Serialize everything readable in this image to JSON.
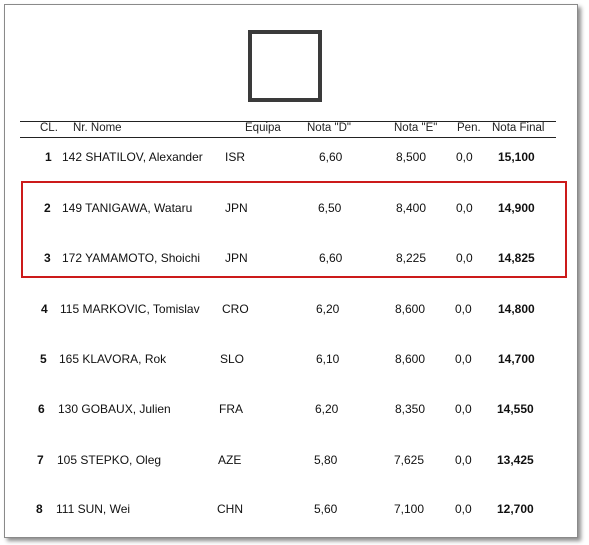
{
  "headers": {
    "cl": "CL.",
    "nr_nome": "Nr. Nome",
    "equipa": "Equipa",
    "nota_d": "Nota \"D\"",
    "nota_e": "Nota \"E\"",
    "pen": "Pen.",
    "nota_final": "Nota Final"
  },
  "rows": [
    {
      "cl": "1",
      "nr_nome": "142 SHATILOV, Alexander",
      "equipa": "ISR",
      "nota_d": "6,60",
      "nota_e": "8,500",
      "pen": "0,0",
      "nota_final": "15,100"
    },
    {
      "cl": "2",
      "nr_nome": "149 TANIGAWA, Wataru",
      "equipa": "JPN",
      "nota_d": "6,50",
      "nota_e": "8,400",
      "pen": "0,0",
      "nota_final": "14,900"
    },
    {
      "cl": "3",
      "nr_nome": "172 YAMAMOTO, Shoichi",
      "equipa": "JPN",
      "nota_d": "6,60",
      "nota_e": "8,225",
      "pen": "0,0",
      "nota_final": "14,825"
    },
    {
      "cl": "4",
      "nr_nome": "115 MARKOVIC, Tomislav",
      "equipa": "CRO",
      "nota_d": "6,20",
      "nota_e": "8,600",
      "pen": "0,0",
      "nota_final": "14,800"
    },
    {
      "cl": "5",
      "nr_nome": "165 KLAVORA, Rok",
      "equipa": "SLO",
      "nota_d": "6,10",
      "nota_e": "8,600",
      "pen": "0,0",
      "nota_final": "14,700"
    },
    {
      "cl": "6",
      "nr_nome": "130 GOBAUX, Julien",
      "equipa": "FRA",
      "nota_d": "6,20",
      "nota_e": "8,350",
      "pen": "0,0",
      "nota_final": "14,550"
    },
    {
      "cl": "7",
      "nr_nome": "105 STEPKO, Oleg",
      "equipa": "AZE",
      "nota_d": "5,80",
      "nota_e": "7,625",
      "pen": "0,0",
      "nota_final": "13,425"
    },
    {
      "cl": "8",
      "nr_nome": "111 SUN, Wei",
      "equipa": "CHN",
      "nota_d": "5,60",
      "nota_e": "7,100",
      "pen": "0,0",
      "nota_final": "12,700"
    }
  ],
  "highlight_color": "#cc1a1a"
}
